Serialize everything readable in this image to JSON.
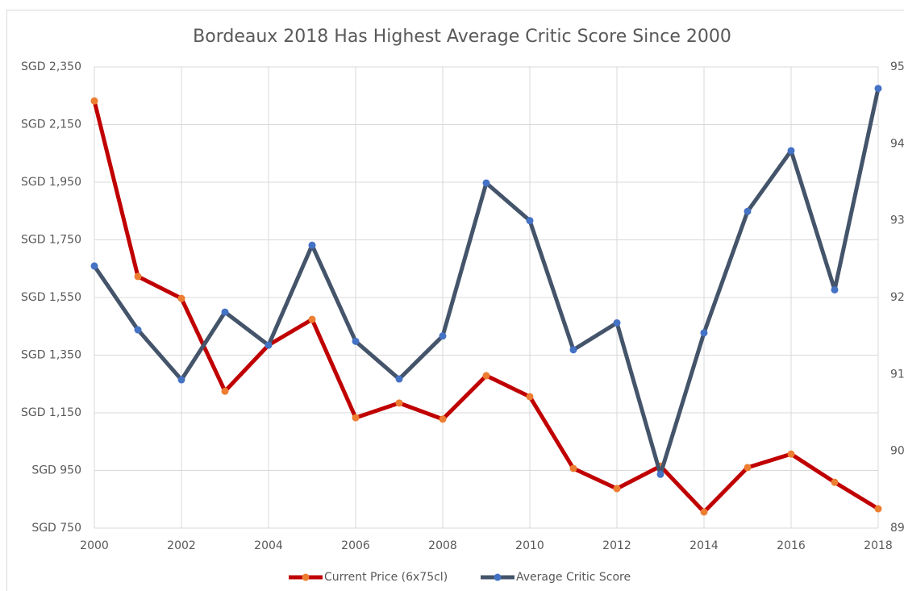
{
  "chart_data": {
    "type": "line",
    "title": "Bordeaux 2018 Has Highest Average Critic Score Since 2000",
    "x": [
      2000,
      2001,
      2002,
      2003,
      2004,
      2005,
      2006,
      2007,
      2008,
      2009,
      2010,
      2011,
      2012,
      2013,
      2014,
      2015,
      2016,
      2017,
      2018
    ],
    "series": [
      {
        "name": "Current Price (6x75cl)",
        "color": "#c00000",
        "marker_color": "#ed7d31",
        "values": [
          2232,
          1623,
          1547,
          1225,
          1385,
          1474,
          1133,
          1184,
          1128,
          1279,
          1206,
          957,
          887,
          965,
          806,
          960,
          1007,
          909,
          817
        ]
      },
      {
        "name": "Average Critic Score",
        "color": "#44546a",
        "marker_color": "#4472c4",
        "axis": "y2",
        "values": [
          92.41,
          91.58,
          90.93,
          91.81,
          91.38,
          92.68,
          91.43,
          90.94,
          91.5,
          93.49,
          93.0,
          91.32,
          91.67,
          89.7,
          91.54,
          93.12,
          93.91,
          92.1,
          94.72
        ]
      }
    ],
    "xlim": [
      2000,
      2018
    ],
    "xticks": [
      2000,
      2002,
      2004,
      2006,
      2008,
      2010,
      2012,
      2014,
      2016,
      2018
    ],
    "ylim": [
      750,
      2350
    ],
    "yticks": [
      {
        "value": 750,
        "label": "SGD 750"
      },
      {
        "value": 950,
        "label": "SGD 950"
      },
      {
        "value": 1150,
        "label": "SGD 1,150"
      },
      {
        "value": 1350,
        "label": "SGD 1,350"
      },
      {
        "value": 1550,
        "label": "SGD 1,550"
      },
      {
        "value": 1750,
        "label": "SGD 1,750"
      },
      {
        "value": 1950,
        "label": "SGD 1,950"
      },
      {
        "value": 2150,
        "label": "SGD 2,150"
      },
      {
        "value": 2350,
        "label": "SGD 2,350"
      }
    ],
    "y2lim": [
      89,
      95
    ],
    "y2ticks": [
      89,
      90,
      91,
      92,
      93,
      94,
      95
    ],
    "grid": true,
    "legend": "bottom"
  }
}
